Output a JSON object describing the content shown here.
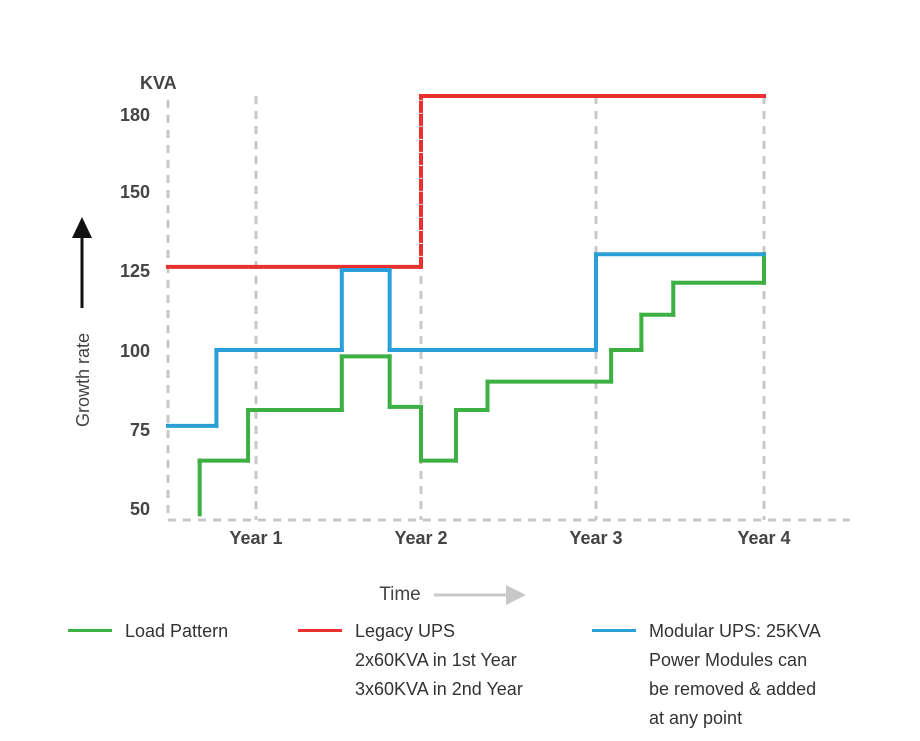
{
  "chart_data": {
    "type": "line",
    "step": true,
    "ylabel_unit": "KVA",
    "ylabel": "Growth rate",
    "xlabel": "Time",
    "yticks": [
      50,
      75,
      100,
      125,
      150,
      180
    ],
    "xticks": [
      "Year 1",
      "Year 2",
      "Year 3",
      "Year 4"
    ],
    "grid": "dashed vertical at years, dashed x-axis",
    "legend_position": "bottom",
    "series": [
      {
        "name": "Load Pattern",
        "color": "#3cb043",
        "points": [
          [
            0.36,
            48
          ],
          [
            0.36,
            65
          ],
          [
            0.91,
            65
          ],
          [
            0.91,
            81
          ],
          [
            1.52,
            81
          ],
          [
            1.52,
            98
          ],
          [
            1.81,
            98
          ],
          [
            1.81,
            82
          ],
          [
            2.0,
            82
          ],
          [
            2.0,
            65
          ],
          [
            2.2,
            65
          ],
          [
            2.2,
            81
          ],
          [
            2.38,
            81
          ],
          [
            2.38,
            90
          ],
          [
            3.09,
            90
          ],
          [
            3.09,
            100
          ],
          [
            3.27,
            100
          ],
          [
            3.27,
            111
          ],
          [
            3.46,
            111
          ],
          [
            3.46,
            121
          ],
          [
            4.0,
            121
          ],
          [
            4.0,
            130
          ]
        ]
      },
      {
        "name": "Legacy UPS",
        "color": "#e8302f",
        "points": [
          [
            0,
            126
          ],
          [
            2.0,
            126
          ],
          [
            2.0,
            187
          ],
          [
            4.0,
            187
          ]
        ]
      },
      {
        "name": "Modular UPS: 25KVA Power Modules can be removed & added at any point",
        "color": "#2a9fd8",
        "points": [
          [
            0,
            76
          ],
          [
            0.55,
            76
          ],
          [
            0.55,
            100
          ],
          [
            1.52,
            100
          ],
          [
            1.52,
            125
          ],
          [
            1.81,
            125
          ],
          [
            1.81,
            100
          ],
          [
            3.0,
            100
          ],
          [
            3.0,
            130
          ],
          [
            4.0,
            130
          ]
        ]
      }
    ]
  },
  "legend": [
    {
      "lines": [
        "Load Pattern"
      ]
    },
    {
      "lines": [
        "Legacy UPS",
        "2x60KVA in 1st Year",
        "3x60KVA in 2nd Year"
      ]
    },
    {
      "lines": [
        "Modular UPS: 25KVA",
        "Power Modules can",
        "be removed & added",
        "at any point"
      ]
    }
  ]
}
